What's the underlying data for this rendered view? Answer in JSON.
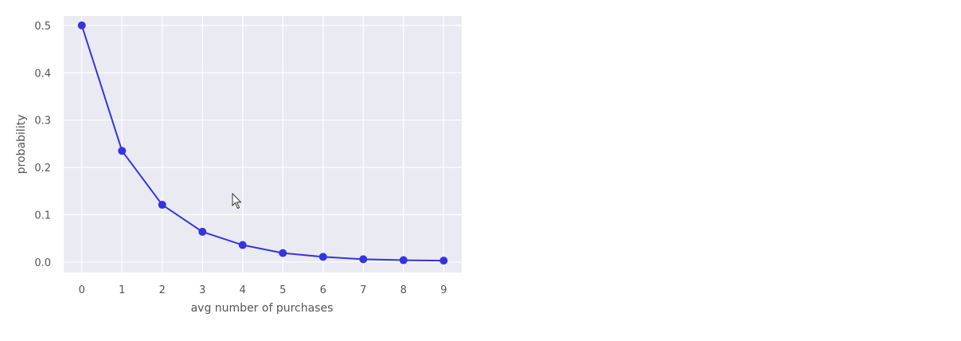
{
  "chart_data": {
    "type": "line",
    "title": "",
    "xlabel": "avg number of purchases",
    "ylabel": "probability",
    "x": [
      0,
      1,
      2,
      3,
      4,
      5,
      6,
      7,
      8,
      9
    ],
    "series": [
      {
        "values": [
          0.5,
          0.235,
          0.121,
          0.064,
          0.036,
          0.019,
          0.011,
          0.006,
          0.004,
          0.003
        ],
        "color": "#3434e0",
        "marker": "circle"
      }
    ],
    "xlim": [
      -0.45,
      9.45
    ],
    "ylim": [
      -0.022,
      0.52
    ],
    "xticks": [
      "0",
      "1",
      "2",
      "3",
      "4",
      "5",
      "6",
      "7",
      "8",
      "9"
    ],
    "yticks": [
      "0.0",
      "0.1",
      "0.2",
      "0.3",
      "0.4",
      "0.5"
    ],
    "grid": true,
    "legend": "none",
    "background": "#eaeaf2"
  },
  "cursor": {
    "icon": "mouse-pointer-icon"
  }
}
